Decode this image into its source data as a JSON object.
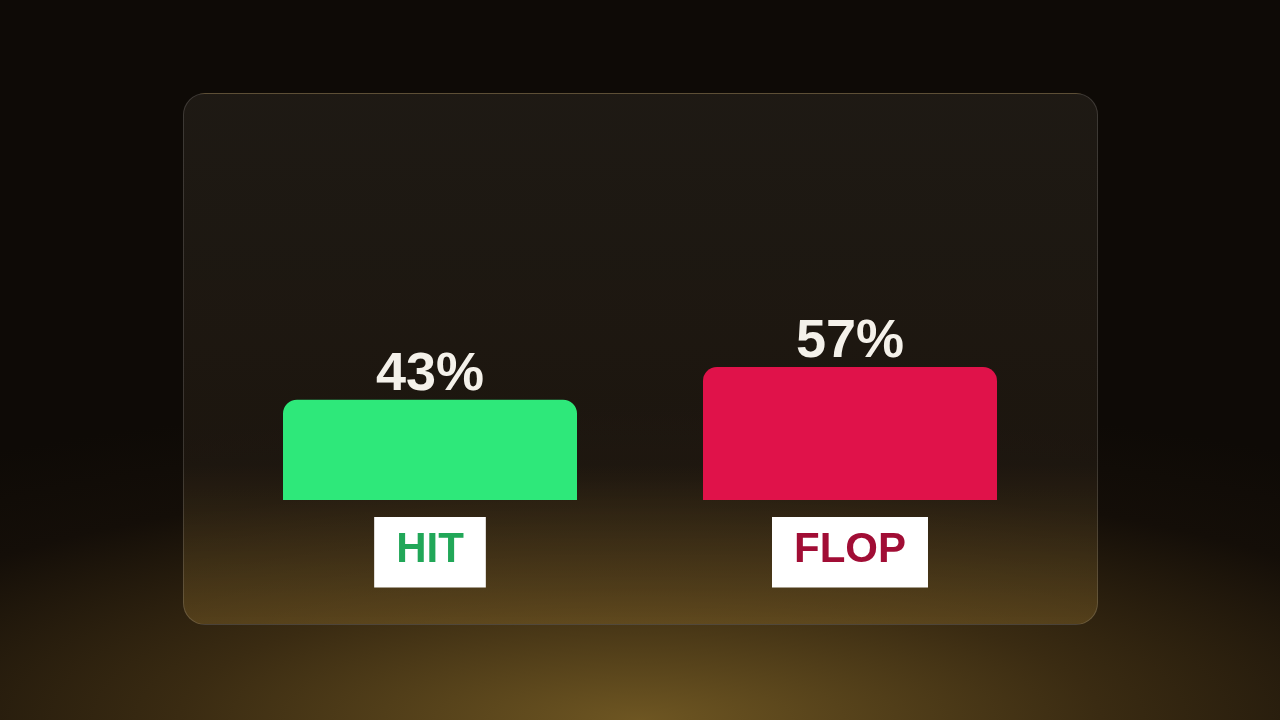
{
  "chart_data": {
    "type": "bar",
    "categories": [
      "HIT",
      "FLOP"
    ],
    "values": [
      43,
      57
    ],
    "colors": [
      "#2ee87a",
      "#e0124a"
    ],
    "value_labels": [
      "43%",
      "57%"
    ]
  }
}
